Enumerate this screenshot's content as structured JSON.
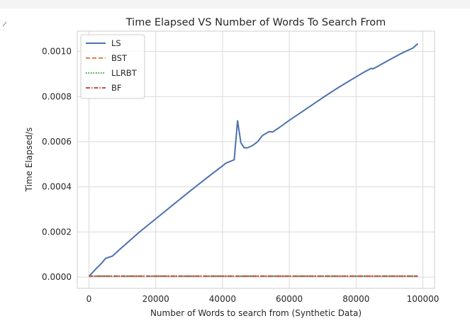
{
  "chart_data": {
    "type": "line",
    "title": "Time Elapsed VS Number of Words To Search From",
    "xlabel": "Number of Words to search from (Synthetic Data)",
    "ylabel": "Time Elapsed/s",
    "xlim": [
      -3500,
      103500
    ],
    "ylim": [
      -5e-05,
      0.00109
    ],
    "xticks": [
      0,
      20000,
      40000,
      60000,
      80000,
      100000
    ],
    "xtick_labels": [
      "0",
      "20000",
      "40000",
      "60000",
      "80000",
      "100000"
    ],
    "yticks": [
      0.0,
      0.0002,
      0.0004,
      0.0006,
      0.0008,
      0.001
    ],
    "ytick_labels": [
      "0.0000",
      "0.0002",
      "0.0004",
      "0.0006",
      "0.0008",
      "0.0010"
    ],
    "grid": true,
    "legend_position": "top-left",
    "series": [
      {
        "name": "LS",
        "color": "#4c72b0",
        "dash": "solid",
        "x": [
          0,
          2000,
          4000,
          5000,
          7000,
          10000,
          15000,
          20000,
          25000,
          30000,
          35000,
          40000,
          41000,
          43500,
          44500,
          45500,
          46500,
          47500,
          49000,
          50500,
          52000,
          54000,
          55000,
          57000,
          60000,
          65000,
          70000,
          75000,
          78000,
          82000,
          84500,
          85000,
          86000,
          90000,
          94000,
          97000,
          98500
        ],
        "y": [
          3e-06,
          3.5e-05,
          6.5e-05,
          8.3e-05,
          9.3e-05,
          0.000133,
          0.000198,
          0.000258,
          0.000318,
          0.000378,
          0.000436,
          0.000493,
          0.000505,
          0.00052,
          0.000693,
          0.000595,
          0.000573,
          0.000573,
          0.000583,
          0.0006,
          0.000628,
          0.000645,
          0.000643,
          0.000663,
          0.000695,
          0.000745,
          0.000795,
          0.000843,
          0.00087,
          0.000905,
          0.000925,
          0.000923,
          0.00093,
          0.000963,
          0.000995,
          0.001015,
          0.001035
        ]
      },
      {
        "name": "BST",
        "color": "#dd8452",
        "dash": "dashed",
        "x": [
          0,
          98500
        ],
        "y": [
          4e-06,
          4e-06
        ]
      },
      {
        "name": "LLRBT",
        "color": "#2ca02c",
        "dash": "dotted",
        "x": [
          0,
          98500
        ],
        "y": [
          4e-06,
          4e-06
        ]
      },
      {
        "name": "BF",
        "color": "#c44e52",
        "dash": "dashdot",
        "x": [
          0,
          98500
        ],
        "y": [
          4e-06,
          4e-06
        ]
      }
    ]
  }
}
